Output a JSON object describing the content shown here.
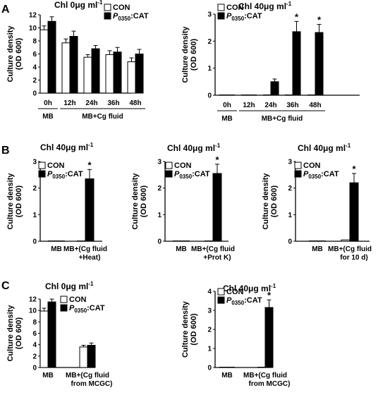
{
  "figure": {
    "panel_labels": [
      "A",
      "B",
      "C"
    ],
    "legend": [
      {
        "label": "CON",
        "color": "#ffffff"
      },
      {
        "label": "P0350:CAT",
        "label_italic": "P",
        "label_sub": "0350",
        "label_rest": ":CAT",
        "color": "#000000"
      }
    ],
    "ylabel_line1": "Culture density",
    "ylabel_line2": "(OD 600)"
  },
  "chart_data": [
    {
      "id": "A-left",
      "panel": "A",
      "type": "bar",
      "title": "Chl 0μg ml-1",
      "title_main": "Chl 0μg ml",
      "title_sup": "-1",
      "ylim": [
        0,
        12
      ],
      "yticks": [
        0,
        2,
        4,
        6,
        8,
        10,
        12
      ],
      "categories": [
        "0h",
        "12h",
        "24h",
        "36h",
        "48h"
      ],
      "groups": [
        {
          "label": "MB",
          "from": 0,
          "to": 0
        },
        {
          "label": "MB+Cg fluid",
          "from": 1,
          "to": 4
        }
      ],
      "series": [
        {
          "name": "CON",
          "values": [
            9.7,
            7.7,
            5.5,
            5.9,
            4.8
          ],
          "errors": [
            0.6,
            0.6,
            0.4,
            0.6,
            0.6
          ]
        },
        {
          "name": "P0350:CAT",
          "values": [
            11.0,
            8.7,
            6.8,
            6.3,
            6.0
          ],
          "errors": [
            0.7,
            0.8,
            0.5,
            0.7,
            0.7
          ]
        }
      ],
      "stars": [
        false,
        false,
        false,
        false,
        false
      ]
    },
    {
      "id": "A-right",
      "panel": "A",
      "type": "bar",
      "title": "Chl 40μg ml-1",
      "title_main": "Chl 40μg ml",
      "title_sup": "-1",
      "ylim": [
        0,
        3
      ],
      "yticks": [
        0,
        1,
        2,
        3
      ],
      "categories": [
        "0h",
        "12h",
        "24h",
        "36h",
        "48h"
      ],
      "groups": [
        {
          "label": "MB",
          "from": 0,
          "to": 0
        },
        {
          "label": "MB+Cg fluid",
          "from": 1,
          "to": 4
        }
      ],
      "series": [
        {
          "name": "CON",
          "values": [
            0,
            0,
            0,
            0,
            0
          ],
          "errors": [
            0,
            0,
            0,
            0,
            0
          ]
        },
        {
          "name": "P0350:CAT",
          "values": [
            0,
            0,
            0.5,
            2.35,
            2.32
          ],
          "errors": [
            0,
            0,
            0.1,
            0.38,
            0.3
          ]
        }
      ],
      "stars": [
        false,
        false,
        false,
        true,
        true
      ]
    },
    {
      "id": "B-1",
      "panel": "B",
      "type": "bar",
      "title": "Chl 40μg ml-1",
      "title_main": "Chl 40μg ml",
      "title_sup": "-1",
      "ylim": [
        0,
        3
      ],
      "yticks": [
        0,
        1,
        2,
        3
      ],
      "categories": [
        "MB",
        "MB+(Cg fluid\n+Heat)"
      ],
      "groups": [],
      "series": [
        {
          "name": "CON",
          "values": [
            0,
            0
          ],
          "errors": [
            0,
            0
          ]
        },
        {
          "name": "P0350:CAT",
          "values": [
            0,
            2.35
          ],
          "errors": [
            0,
            0.35
          ]
        }
      ],
      "stars": [
        false,
        true
      ]
    },
    {
      "id": "B-2",
      "panel": "B",
      "type": "bar",
      "title": "Chl 40μg ml-1",
      "title_main": "Chl 40μg ml",
      "title_sup": "-1",
      "ylim": [
        0,
        3
      ],
      "yticks": [
        0,
        1,
        2,
        3
      ],
      "categories": [
        "MB",
        "MB+(Cg fluid\n+Prot K)"
      ],
      "groups": [],
      "series": [
        {
          "name": "CON",
          "values": [
            0,
            0
          ],
          "errors": [
            0,
            0
          ]
        },
        {
          "name": "P0350:CAT",
          "values": [
            0,
            2.55
          ],
          "errors": [
            0,
            0.35
          ]
        }
      ],
      "stars": [
        false,
        true
      ]
    },
    {
      "id": "B-3",
      "panel": "B",
      "type": "bar",
      "title": "Chl 40μg ml-1",
      "title_main": "Chl 40μg ml",
      "title_sup": "-1",
      "ylim": [
        0,
        3
      ],
      "yticks": [
        0,
        1,
        2,
        3
      ],
      "categories": [
        "MB",
        "MB+(Cg fluid\nfor 10 d)"
      ],
      "groups": [],
      "series": [
        {
          "name": "CON",
          "values": [
            0,
            0.05
          ],
          "errors": [
            0,
            0
          ]
        },
        {
          "name": "P0350:CAT",
          "values": [
            0,
            2.2
          ],
          "errors": [
            0,
            0.35
          ]
        }
      ],
      "stars": [
        false,
        true
      ]
    },
    {
      "id": "C-left",
      "panel": "C",
      "type": "bar",
      "title": "Chl 0μg ml-1",
      "title_main": "Chl 0μg ml",
      "title_sup": "-1",
      "ylim": [
        0,
        12
      ],
      "yticks": [
        0,
        2,
        4,
        6,
        8,
        10,
        12
      ],
      "categories": [
        "MB",
        "MB+(Cg fluid\nfrom MCGC)"
      ],
      "groups": [],
      "series": [
        {
          "name": "CON",
          "values": [
            9.9,
            3.6
          ],
          "errors": [
            0.5,
            0.3
          ]
        },
        {
          "name": "P0350:CAT",
          "values": [
            11.5,
            3.9
          ],
          "errors": [
            0.5,
            0.4
          ]
        }
      ],
      "stars": [
        false,
        false
      ]
    },
    {
      "id": "C-right",
      "panel": "C",
      "type": "bar",
      "title": "Chl 40μg ml-1",
      "title_main": "Chl 40μg ml",
      "title_sup": "-1",
      "ylim": [
        0,
        4
      ],
      "yticks": [
        0,
        1,
        2,
        3,
        4
      ],
      "categories": [
        "MB",
        "MB+(Cg fluid\nfrom MCGC)"
      ],
      "groups": [],
      "series": [
        {
          "name": "CON",
          "values": [
            0,
            0
          ],
          "errors": [
            0,
            0
          ]
        },
        {
          "name": "P0350:CAT",
          "values": [
            0,
            3.15
          ],
          "errors": [
            0,
            0.4
          ]
        }
      ],
      "stars": [
        false,
        true
      ]
    }
  ]
}
